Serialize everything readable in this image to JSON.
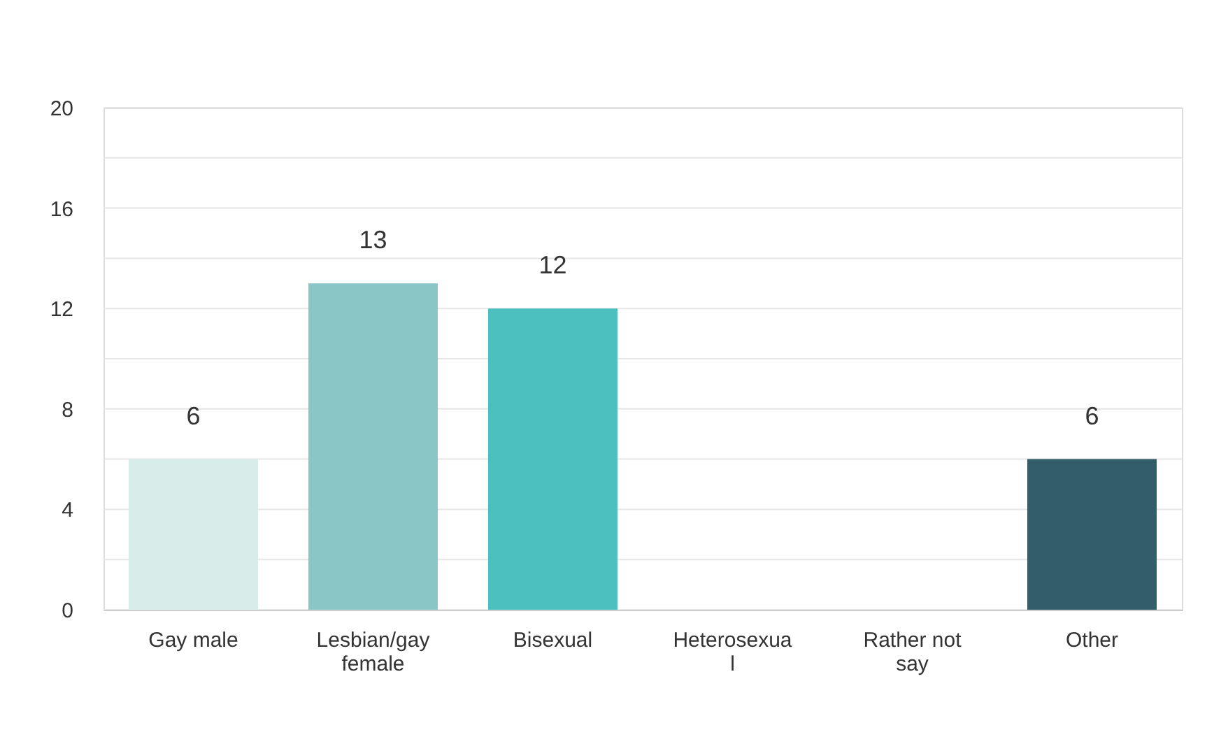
{
  "chart_data": {
    "type": "bar",
    "categories": [
      "Gay male",
      "Lesbian/gay female",
      "Bisexual",
      "Heterosexual",
      "Rather not say",
      "Other"
    ],
    "values": [
      6,
      13,
      12,
      0,
      0,
      6
    ],
    "colors": [
      "#d8ecea",
      "#8bc6c7",
      "#4cbfbf",
      null,
      null,
      "#325e6a"
    ],
    "value_labels": [
      "6",
      "13",
      "12",
      null,
      null,
      "6"
    ],
    "ylim": [
      0,
      20
    ],
    "yticks": [
      0,
      {
        "value": 2,
        "label": null
      },
      4,
      {
        "value": 6,
        "label": null
      },
      8,
      {
        "value": 10,
        "label": null
      },
      12,
      {
        "value": 14,
        "label": null
      },
      16,
      {
        "value": 18,
        "label": null
      },
      20
    ],
    "grid": "y"
  }
}
